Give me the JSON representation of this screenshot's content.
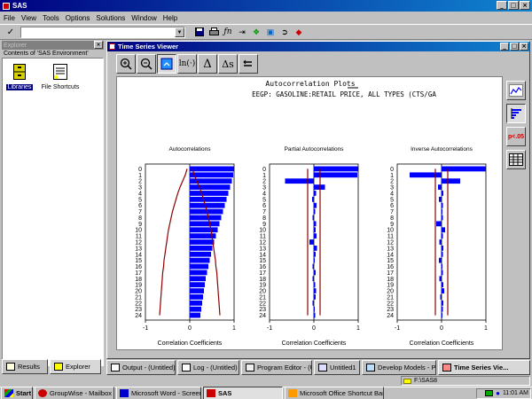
{
  "app": {
    "title": "SAS"
  },
  "menu": [
    "File",
    "View",
    "Tools",
    "Options",
    "Solutions",
    "Window",
    "Help"
  ],
  "toolbar": {
    "command_value": ""
  },
  "explorer": {
    "title": "Explorer",
    "contents_label": "Contents of 'SAS Environment'",
    "items": [
      {
        "label": "Libraries",
        "icon": "cabinet-icon"
      },
      {
        "label": "File Shortcuts",
        "icon": "file-shortcut-icon"
      }
    ],
    "tabs": [
      "Results",
      "Explorer"
    ]
  },
  "viewer": {
    "title": "Time Series Viewer",
    "tools": [
      "zoom-in-icon",
      "zoom-out-icon",
      "link-icon",
      "ln(·)",
      "Δ",
      "Δs",
      "undo-icon"
    ],
    "plot_title": "Autocorrelation Plots",
    "series_title": "EEGP: GASOLINE:RETAIL PRICE, ALL TYPES (CTS/GA",
    "side_buttons": [
      "line-plot-icon",
      "correlation-plot-icon",
      "p<.05",
      "table-icon"
    ]
  },
  "chart_data": [
    {
      "type": "bar",
      "title": "Autocorrelations",
      "xlabel": "Correlation Coefficients",
      "xlim": [
        -1,
        1
      ],
      "xticks": [
        "-1",
        "0",
        "1"
      ],
      "lags": [
        "0",
        "1",
        "2",
        "3",
        "4",
        "5",
        "6",
        "7",
        "8",
        "9",
        "10",
        "11",
        "12",
        "13",
        "14",
        "15",
        "16",
        "17",
        "18",
        "19",
        "20",
        "21",
        "22",
        "23",
        "24"
      ],
      "values": [
        1.0,
        0.98,
        0.95,
        0.91,
        0.87,
        0.83,
        0.79,
        0.75,
        0.71,
        0.67,
        0.63,
        0.59,
        0.55,
        0.51,
        0.48,
        0.45,
        0.42,
        0.39,
        0.36,
        0.34,
        0.32,
        0.3,
        0.28,
        0.26,
        0.24
      ],
      "confidence": [
        0.06,
        0.1,
        0.16,
        0.22,
        0.27,
        0.31,
        0.35,
        0.39,
        0.42,
        0.45,
        0.48,
        0.5,
        0.52,
        0.54,
        0.56,
        0.58,
        0.59,
        0.61,
        0.62,
        0.63,
        0.64,
        0.65,
        0.66,
        0.67,
        0.68
      ]
    },
    {
      "type": "bar",
      "title": "Partial Autocorrelations",
      "xlabel": "Correlation Coefficients",
      "xlim": [
        -1,
        1
      ],
      "xticks": [
        "-1",
        "0",
        "1"
      ],
      "lags": [
        "0",
        "1",
        "2",
        "3",
        "4",
        "5",
        "6",
        "7",
        "8",
        "9",
        "10",
        "11",
        "12",
        "13",
        "14",
        "15",
        "16",
        "17",
        "18",
        "19",
        "20",
        "21",
        "22",
        "23",
        "24"
      ],
      "values": [
        1.0,
        0.98,
        -0.65,
        0.25,
        0.05,
        -0.04,
        0.06,
        0.03,
        -0.03,
        0.05,
        0.04,
        0.06,
        -0.1,
        0.07,
        0.04,
        0.02,
        -0.03,
        0.04,
        -0.03,
        0.03,
        0.05,
        0.04,
        -0.03,
        0.02,
        0.03
      ],
      "confidence": [
        0.14,
        0.14,
        0.14,
        0.14,
        0.14,
        0.14,
        0.14,
        0.14,
        0.14,
        0.14,
        0.14,
        0.14,
        0.14,
        0.14,
        0.14,
        0.14,
        0.14,
        0.14,
        0.14,
        0.14,
        0.14,
        0.14,
        0.14,
        0.14,
        0.14
      ]
    },
    {
      "type": "bar",
      "title": "Inverse Autocorrelations",
      "xlabel": "Correlation Coefficients",
      "xlim": [
        -1,
        1
      ],
      "xticks": [
        "-1",
        "0",
        "1"
      ],
      "lags": [
        "0",
        "1",
        "2",
        "3",
        "4",
        "5",
        "6",
        "7",
        "8",
        "9",
        "10",
        "11",
        "12",
        "13",
        "14",
        "15",
        "16",
        "17",
        "18",
        "19",
        "20",
        "21",
        "22",
        "23",
        "24"
      ],
      "values": [
        1.0,
        -0.72,
        0.42,
        -0.08,
        0.04,
        -0.06,
        0.03,
        0.02,
        0.03,
        -0.12,
        0.08,
        0.03,
        -0.05,
        0.04,
        0.03,
        -0.06,
        0.02,
        0.03,
        -0.05,
        0.04,
        0.06,
        -0.03,
        0.04,
        0.03,
        0.02
      ],
      "confidence": [
        0.14,
        0.14,
        0.14,
        0.14,
        0.14,
        0.14,
        0.14,
        0.14,
        0.14,
        0.14,
        0.14,
        0.14,
        0.14,
        0.14,
        0.14,
        0.14,
        0.14,
        0.14,
        0.14,
        0.14,
        0.14,
        0.14,
        0.14,
        0.14,
        0.14
      ]
    }
  ],
  "window_tabs": [
    "Output - (Untitled)",
    "Log - (Untitled)",
    "Program Editor - (Un...",
    "Untitled1",
    "Develop Models - Pr...",
    "Time Series Vie..."
  ],
  "status_path": "F:\\SAS8",
  "taskbar": {
    "start": "Start",
    "items": [
      "GroupWise - Mailbox",
      "Microsoft Word - Screens...",
      "SAS",
      "Microsoft Office Shortcut Bar"
    ],
    "clock": "11:01 AM"
  },
  "colors": {
    "bar": "#0000ff",
    "confidence": "#8b0000",
    "titlebar": "#000080",
    "face": "#c0c0c0"
  }
}
